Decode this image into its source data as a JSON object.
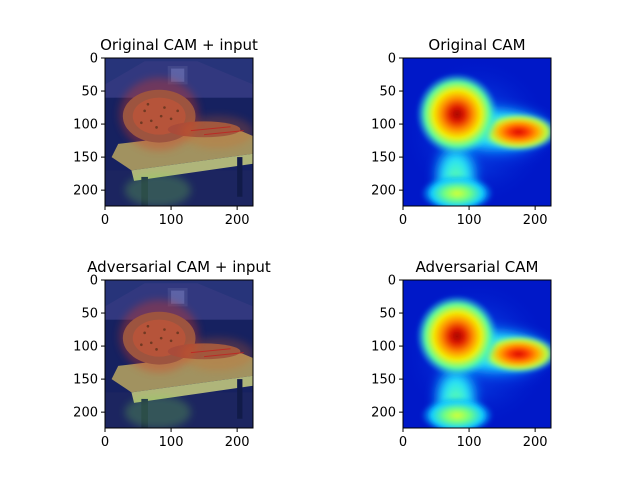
{
  "chart_data": [
    {
      "type": "heatmap",
      "title": "Original CAM + input",
      "image": "cam-overlay-on-photo",
      "xlim": [
        0,
        224
      ],
      "ylim": [
        224,
        0
      ],
      "xticks": [
        0,
        100,
        200
      ],
      "yticks": [
        0,
        50,
        100,
        150,
        200
      ],
      "xticklabels": [
        "0",
        "100",
        "200"
      ],
      "yticklabels": [
        "0",
        "50",
        "100",
        "150",
        "200"
      ],
      "xlabel": "",
      "ylabel": ""
    },
    {
      "type": "heatmap",
      "title": "Original CAM",
      "image": "cam-heatmap",
      "colormap": "jet",
      "xlim": [
        0,
        224
      ],
      "ylim": [
        224,
        0
      ],
      "xticks": [
        0,
        100,
        200
      ],
      "yticks": [
        0,
        50,
        100,
        150,
        200
      ],
      "xticklabels": [
        "0",
        "100",
        "200"
      ],
      "yticklabels": [
        "0",
        "50",
        "100",
        "150",
        "200"
      ],
      "xlabel": "",
      "ylabel": ""
    },
    {
      "type": "heatmap",
      "title": "Adversarial CAM + input",
      "image": "cam-overlay-on-photo",
      "xlim": [
        0,
        224
      ],
      "ylim": [
        224,
        0
      ],
      "xticks": [
        0,
        100,
        200
      ],
      "yticks": [
        0,
        50,
        100,
        150,
        200
      ],
      "xticklabels": [
        "0",
        "100",
        "200"
      ],
      "yticklabels": [
        "0",
        "50",
        "100",
        "150",
        "200"
      ],
      "xlabel": "",
      "ylabel": ""
    },
    {
      "type": "heatmap",
      "title": "Adversarial CAM",
      "image": "cam-heatmap",
      "colormap": "jet",
      "xlim": [
        0,
        224
      ],
      "ylim": [
        224,
        0
      ],
      "xticks": [
        0,
        100,
        200
      ],
      "yticks": [
        0,
        50,
        100,
        150,
        200
      ],
      "xticklabels": [
        "0",
        "100",
        "200"
      ],
      "yticklabels": [
        "0",
        "50",
        "100",
        "150",
        "200"
      ],
      "xlabel": "",
      "ylabel": ""
    }
  ]
}
